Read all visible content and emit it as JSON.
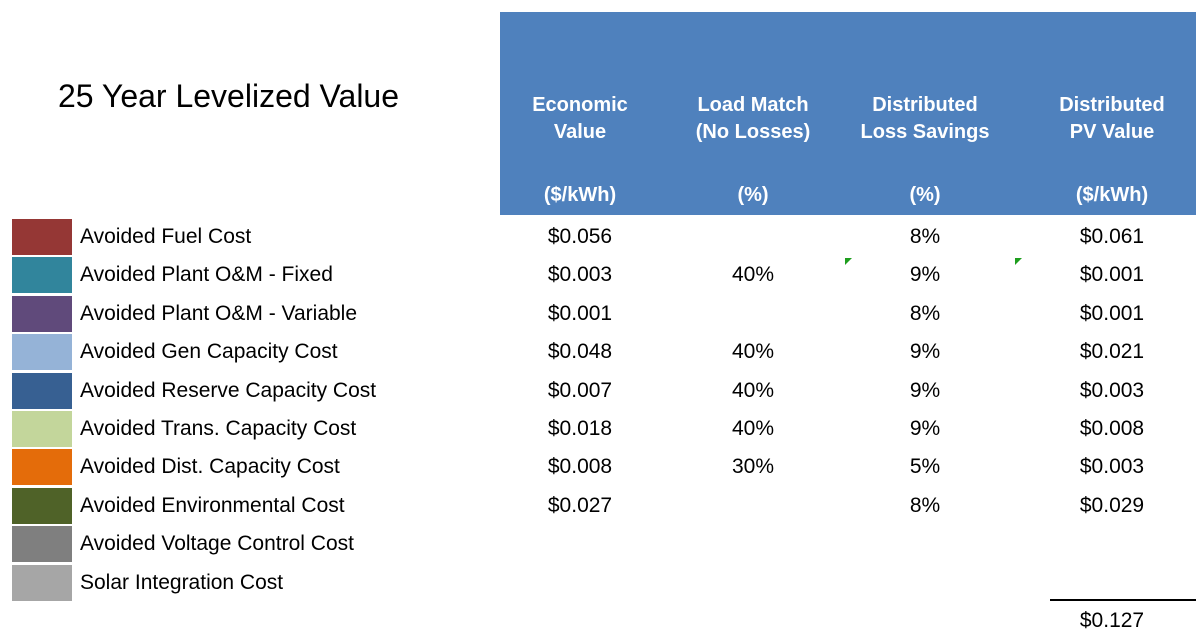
{
  "title": "25 Year Levelized Value",
  "columns": [
    {
      "heading": [
        "Economic",
        "Value"
      ],
      "unit": "($/kWh)"
    },
    {
      "heading": [
        "Load Match",
        "(No Losses)"
      ],
      "unit": "(%)"
    },
    {
      "heading": [
        "Distributed",
        "Loss Savings"
      ],
      "unit": "(%)"
    },
    {
      "heading": [
        "Distributed",
        "PV Value"
      ],
      "unit": "($/kWh)"
    }
  ],
  "header_color": "#4f81bd",
  "rows": [
    {
      "label": "Avoided Fuel Cost",
      "color": "#953735",
      "cells": [
        "$0.056",
        null,
        "8%",
        "$0.061"
      ]
    },
    {
      "label": "Avoided Plant O&M - Fixed",
      "color": "#31859c",
      "cells": [
        "$0.003",
        "40%",
        "9%",
        "$0.001"
      ]
    },
    {
      "label": "Avoided Plant O&M - Variable",
      "color": "#604a7b",
      "cells": [
        "$0.001",
        null,
        "8%",
        "$0.001"
      ]
    },
    {
      "label": "Avoided Gen Capacity Cost",
      "color": "#95b3d7",
      "cells": [
        "$0.048",
        "40%",
        "9%",
        "$0.021"
      ]
    },
    {
      "label": "Avoided Reserve Capacity Cost",
      "color": "#376092",
      "cells": [
        "$0.007",
        "40%",
        "9%",
        "$0.003"
      ]
    },
    {
      "label": "Avoided Trans. Capacity Cost",
      "color": "#c3d69b",
      "cells": [
        "$0.018",
        "40%",
        "9%",
        "$0.008"
      ]
    },
    {
      "label": "Avoided Dist. Capacity Cost",
      "color": "#e46c0a",
      "cells": [
        "$0.008",
        "30%",
        "5%",
        "$0.003"
      ]
    },
    {
      "label": "Avoided Environmental Cost",
      "color": "#4f6228",
      "cells": [
        "$0.027",
        null,
        "8%",
        "$0.029"
      ]
    },
    {
      "label": "Avoided Voltage Control Cost",
      "color": "#7f7f7f",
      "cells": [
        null,
        null,
        null,
        null
      ]
    },
    {
      "label": "Solar Integration Cost",
      "color": "#a6a6a6",
      "cells": [
        null,
        null,
        null,
        null
      ]
    }
  ],
  "total": "$0.127"
}
